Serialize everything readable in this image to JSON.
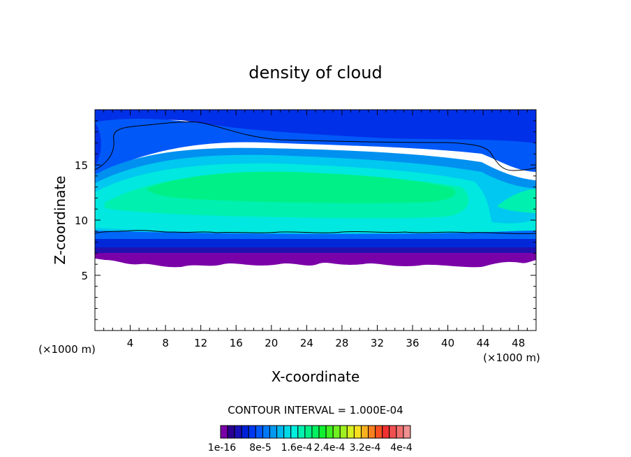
{
  "chart_data": {
    "type": "heatmap",
    "title": "density of cloud",
    "xlabel": "X-coordinate",
    "ylabel": "Z-coordinate",
    "x_unit": "(×1000 m)",
    "y_unit": "(×1000 m)",
    "xlim": [
      0,
      50
    ],
    "ylim": [
      0,
      20
    ],
    "x_ticks": [
      4,
      8,
      12,
      16,
      20,
      24,
      28,
      32,
      36,
      40,
      44,
      48
    ],
    "y_ticks": [
      5,
      10,
      15
    ],
    "contour_interval_label": "CONTOUR INTERVAL = 1.000E-04",
    "colorbar": {
      "colors": [
        "#7a00a8",
        "#2a0090",
        "#1a10b8",
        "#0020d8",
        "#0038f0",
        "#0058f8",
        "#0078f8",
        "#0098f0",
        "#00b8f0",
        "#00d8e8",
        "#00f0e0",
        "#00f0b0",
        "#00f088",
        "#00f060",
        "#10f030",
        "#40f020",
        "#70f020",
        "#a0f020",
        "#d8f020",
        "#f8e020",
        "#f8b020",
        "#f88020",
        "#f85020",
        "#f03030",
        "#f05050",
        "#f07070",
        "#f09090"
      ],
      "labels": [
        "1e-16",
        "8e-5",
        "1.6e-4",
        "2.4e-4",
        "3.2e-4",
        "4e-4"
      ]
    }
  }
}
